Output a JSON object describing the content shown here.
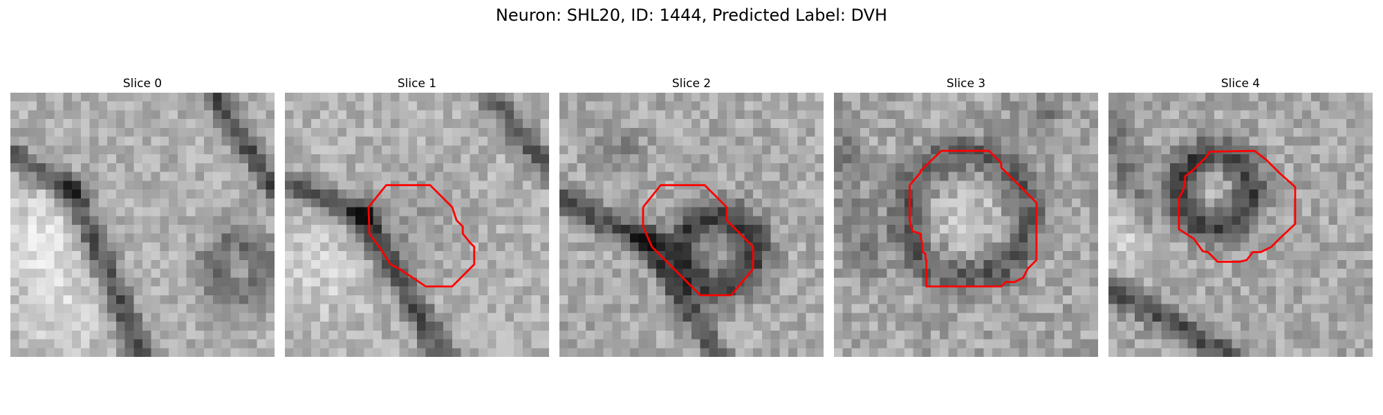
{
  "figure": {
    "title": "Neuron: SHL20, ID: 1444, Predicted Label: DVH",
    "contour_color": "#ff0000"
  },
  "slices": [
    {
      "title": "Slice 0"
    },
    {
      "title": "Slice 1"
    },
    {
      "title": "Slice 2"
    },
    {
      "title": "Slice 3"
    },
    {
      "title": "Slice 4"
    }
  ]
}
